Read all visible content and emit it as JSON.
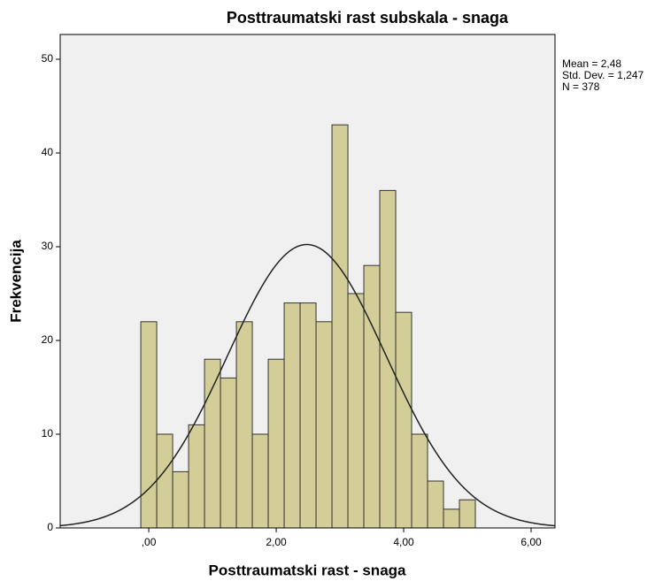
{
  "chart_data": {
    "type": "histogram",
    "title": "Posttraumatski rast subskala - snaga",
    "x_label": "Posttraumatski rast - snaga",
    "y_label": "Frekvencija",
    "bins": [
      -0.125,
      0.125,
      0.375,
      0.625,
      0.875,
      1.125,
      1.375,
      1.625,
      1.875,
      2.125,
      2.375,
      2.625,
      2.875,
      3.125,
      3.375,
      3.625,
      3.875,
      4.125,
      4.375,
      4.625,
      4.875,
      5.125
    ],
    "values": [
      22,
      10,
      6,
      11,
      18,
      16,
      22,
      10,
      18,
      24,
      24,
      22,
      43,
      25,
      28,
      36,
      23,
      10,
      5,
      2,
      3
    ],
    "color": "#d3ce97",
    "xlim": [
      -1.39,
      6.375
    ],
    "ylim": [
      0,
      52.64
    ],
    "xticks": [
      {
        "value": 0,
        "label": ",00"
      },
      {
        "value": 2,
        "label": "2,00"
      },
      {
        "value": 4,
        "label": "4,00"
      },
      {
        "value": 6,
        "label": "6,00"
      }
    ],
    "yticks": [
      0,
      10,
      20,
      30,
      40,
      50
    ],
    "stats": {
      "mean": {
        "value": 2.48,
        "label": "Mean = 2,48"
      },
      "std": {
        "value": 1.247,
        "label": "Std. Dev. = 1,247"
      },
      "n": {
        "value": 378,
        "label": "N = 378"
      }
    }
  }
}
